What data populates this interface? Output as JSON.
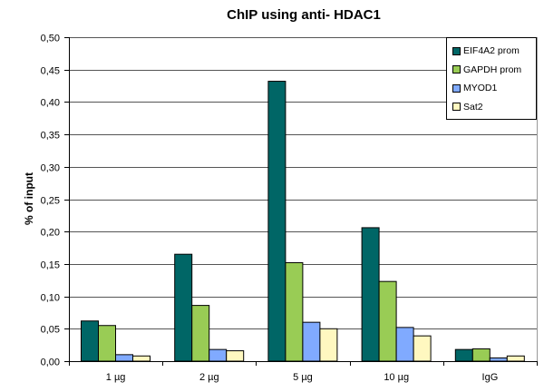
{
  "chart_data": {
    "type": "bar",
    "title": "ChIP using anti- HDAC1",
    "xlabel": "",
    "ylabel": "% of input",
    "ylim": [
      0,
      0.5
    ],
    "yticks": [
      "0,00",
      "0,05",
      "0,10",
      "0,15",
      "0,20",
      "0,25",
      "0,30",
      "0,35",
      "0,40",
      "0,45",
      "0,50"
    ],
    "grid": true,
    "legend_position": "top-right",
    "categories": [
      "1 µg",
      "2 µg",
      "5 µg",
      "10 µg",
      "IgG"
    ],
    "series": [
      {
        "name": "EIF4A2 prom",
        "color": "#006666",
        "values": [
          0.062,
          0.165,
          0.432,
          0.206,
          0.018
        ]
      },
      {
        "name": "GAPDH prom",
        "color": "#99cc55",
        "values": [
          0.055,
          0.086,
          0.152,
          0.123,
          0.019
        ]
      },
      {
        "name": "MYOD1",
        "color": "#80aaff",
        "values": [
          0.01,
          0.018,
          0.06,
          0.052,
          0.005
        ]
      },
      {
        "name": "Sat2",
        "color": "#fff8c0",
        "values": [
          0.008,
          0.016,
          0.05,
          0.039,
          0.008
        ]
      }
    ]
  }
}
